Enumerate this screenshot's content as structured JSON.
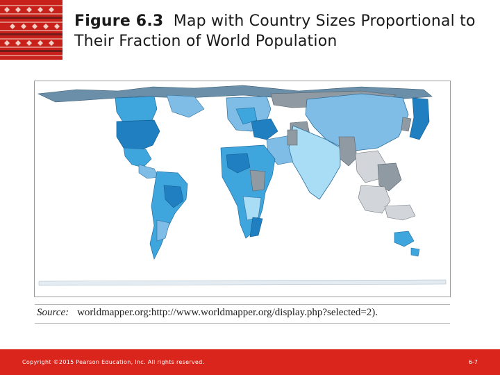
{
  "title": {
    "figure_label": "Figure 6.3",
    "text": "Map with Country Sizes Proportional to Their Fraction of World Population"
  },
  "source": {
    "label": "Source:",
    "text": "worldmapper.org:http://www.worldmapper.org/display.php?selected=2)."
  },
  "footer": {
    "copyright": "Copyright ©2015 Pearson Education, Inc. All rights reserved.",
    "page_number": "6-7"
  },
  "colors": {
    "brand_red": "#d9251c",
    "logo_red": "#c8211b",
    "map_dark_blue": "#1f7fc0",
    "map_mid_blue": "#3fa5dd",
    "map_light_blue": "#a9dcf5",
    "map_grey": "#8f9aa3",
    "map_light_grey": "#d2d6da"
  },
  "icons": {
    "logo": "decorative-pattern-logo",
    "map": "world-cartogram-map"
  }
}
